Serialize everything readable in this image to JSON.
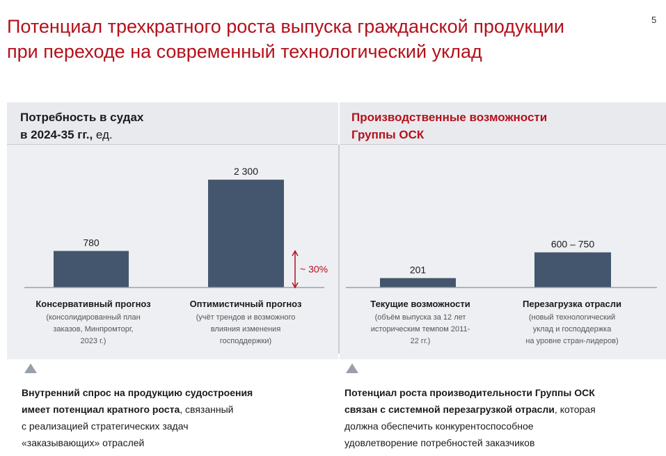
{
  "page": {
    "title_line1": "Потенциал трехкратного роста выпуска гражданской продукции",
    "title_line2": "при переходе на современный технологический уклад",
    "page_number": "5"
  },
  "colors": {
    "accent": "#b3111b",
    "bar": "#44566d",
    "panel_bg": "#eeeff2",
    "axis": "#9aa0aa"
  },
  "left_panel": {
    "title_line1": "Потребность в судах",
    "title_line2_bold": "в 2024-35 гг.,",
    "title_line2_light": " ед."
  },
  "right_panel": {
    "title_line1": "Производственные возможности",
    "title_line2": "Группы ОСК"
  },
  "chart_data": [
    {
      "type": "bar",
      "title": "Потребность в судах в 2024-35 гг., ед.",
      "categories": [
        "Консервативный прогноз",
        "Оптимистичный прогноз"
      ],
      "values": [
        780,
        2300
      ],
      "value_labels": [
        "780",
        "2 300"
      ],
      "notes": [
        [
          "(консолидированный план",
          "заказов, Минпромторг,",
          "2023 г.)"
        ],
        [
          "(учёт трендов и возможного",
          "влияния изменения",
          "господдержки)"
        ]
      ],
      "ylim": [
        0,
        2450
      ],
      "annotation": {
        "text": "~ 30%",
        "from": 0,
        "to": 780,
        "color": "#b3111b"
      }
    },
    {
      "type": "bar",
      "title": "Производственные возможности Группы ОСК",
      "categories": [
        "Текущие возможности",
        "Перезагрузка отрасли"
      ],
      "values": [
        201,
        750
      ],
      "value_labels": [
        "201",
        "600 – 750"
      ],
      "notes": [
        [
          "(объём выпуска за 12 лет",
          "историческим темпом 2011-",
          "22 гг.)"
        ],
        [
          "(новый технологический",
          "уклад и господдержка",
          "на уровне стран-лидеров)"
        ]
      ],
      "ylim": [
        0,
        2450
      ]
    }
  ],
  "summary_left": {
    "bold_1": "Внутренний спрос на продукцию судостроения",
    "bold_2": "имеет потенциал кратного роста",
    "text_2": ", связанный",
    "text_3": "с реализацией стратегических задач",
    "text_4": "«заказывающих» отраслей"
  },
  "summary_right": {
    "bold_1": "Потенциал роста производительности Группы ОСК",
    "bold_2": "связан с системной перезагрузкой отрасли",
    "text_2": ", которая",
    "text_3": "должна обеспечить конкурентоспособное",
    "text_4": "удовлетворение потребностей заказчиков"
  }
}
